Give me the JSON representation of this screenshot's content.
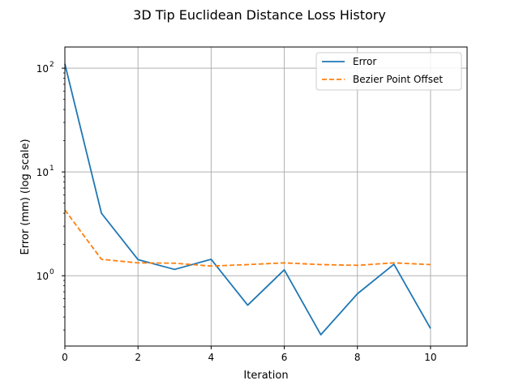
{
  "chart_data": {
    "type": "line",
    "title": "3D Tip Euclidean Distance Loss History",
    "xlabel": "Iteration",
    "ylabel": "Error (mm) (log scale)",
    "xlim": [
      0,
      11
    ],
    "ylim": [
      0.21,
      160
    ],
    "yscale": "log",
    "grid": true,
    "legend_position": "upper-right",
    "xticks": [
      0,
      2,
      4,
      6,
      8,
      10
    ],
    "yticks": [
      {
        "value": 1,
        "base": "10",
        "exp": "0"
      },
      {
        "value": 10,
        "base": "10",
        "exp": "1"
      },
      {
        "value": 100,
        "base": "10",
        "exp": "2"
      }
    ],
    "series": [
      {
        "name": "Error",
        "color": "#1f77b4",
        "dash": "solid",
        "x": [
          0,
          1,
          2,
          3,
          4,
          5,
          6,
          7,
          8,
          9,
          10
        ],
        "y": [
          110,
          4.0,
          1.43,
          1.15,
          1.44,
          0.52,
          1.14,
          0.27,
          0.67,
          1.29,
          0.31
        ]
      },
      {
        "name": "Bezier Point Offset",
        "color": "#ff7f0e",
        "dash": "dashed",
        "x": [
          0,
          1,
          2,
          3,
          4,
          5,
          6,
          7,
          8,
          9,
          10
        ],
        "y": [
          4.3,
          1.44,
          1.33,
          1.32,
          1.24,
          1.28,
          1.33,
          1.28,
          1.26,
          1.33,
          1.28
        ]
      }
    ]
  }
}
